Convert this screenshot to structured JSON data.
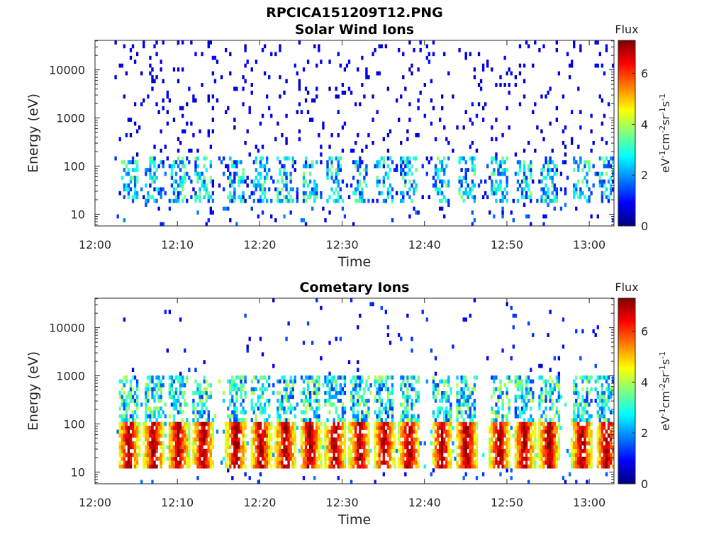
{
  "figure_title": "RPCICA151209T12.PNG",
  "colorbar": {
    "title": "Flux",
    "label_base": "eV",
    "label_sup1": "-1",
    "label_mid1": "cm",
    "label_sup2": "-2",
    "label_mid2": "sr",
    "label_sup3": "-1",
    "label_mid3": "s",
    "label_sup4": "-1",
    "ticks": [
      "0",
      "2",
      "4",
      "6"
    ],
    "range": [
      0,
      7.3
    ],
    "colormap": "jet",
    "colors": [
      "#00007f",
      "#0000ff",
      "#007fff",
      "#00ffff",
      "#7fff7f",
      "#ffff00",
      "#ff7f00",
      "#ff0000",
      "#7f0000"
    ]
  },
  "chart_data": [
    {
      "type": "heatmap",
      "title": "Solar Wind Ions",
      "xlabel": "Time",
      "ylabel": "Energy (eV)",
      "xlim": [
        "12:00",
        "13:03"
      ],
      "ylim": [
        5.7,
        41000
      ],
      "yscale": "log",
      "xticks": [
        "12:00",
        "12:10",
        "12:20",
        "12:30",
        "12:40",
        "12:50",
        "13:00"
      ],
      "yticks": [
        "10",
        "100",
        "1000",
        "10000"
      ],
      "zlabel": "Flux",
      "zrange": [
        0,
        7.3
      ],
      "burst_times": [
        "12:04",
        "12:07",
        "12:10",
        "12:13",
        "12:17",
        "12:20",
        "12:23",
        "12:26",
        "12:29",
        "12:32",
        "12:35",
        "12:38",
        "12:42",
        "12:45",
        "12:49",
        "12:52",
        "12:55",
        "12:59",
        "13:02"
      ]
    },
    {
      "type": "heatmap",
      "title": "Cometary Ions",
      "xlabel": "Time",
      "ylabel": "Energy (eV)",
      "xlim": [
        "12:00",
        "13:03"
      ],
      "ylim": [
        5.7,
        41000
      ],
      "yscale": "log",
      "xticks": [
        "12:00",
        "12:10",
        "12:20",
        "12:30",
        "12:40",
        "12:50",
        "13:00"
      ],
      "yticks": [
        "10",
        "100",
        "1000",
        "10000"
      ],
      "zlabel": "Flux",
      "zrange": [
        0,
        7.3
      ],
      "burst_times": [
        "12:04",
        "12:07",
        "12:10",
        "12:13",
        "12:17",
        "12:20",
        "12:23",
        "12:26",
        "12:29",
        "12:32",
        "12:35",
        "12:38",
        "12:42",
        "12:45",
        "12:49",
        "12:52",
        "12:55",
        "12:59",
        "13:02"
      ]
    }
  ]
}
